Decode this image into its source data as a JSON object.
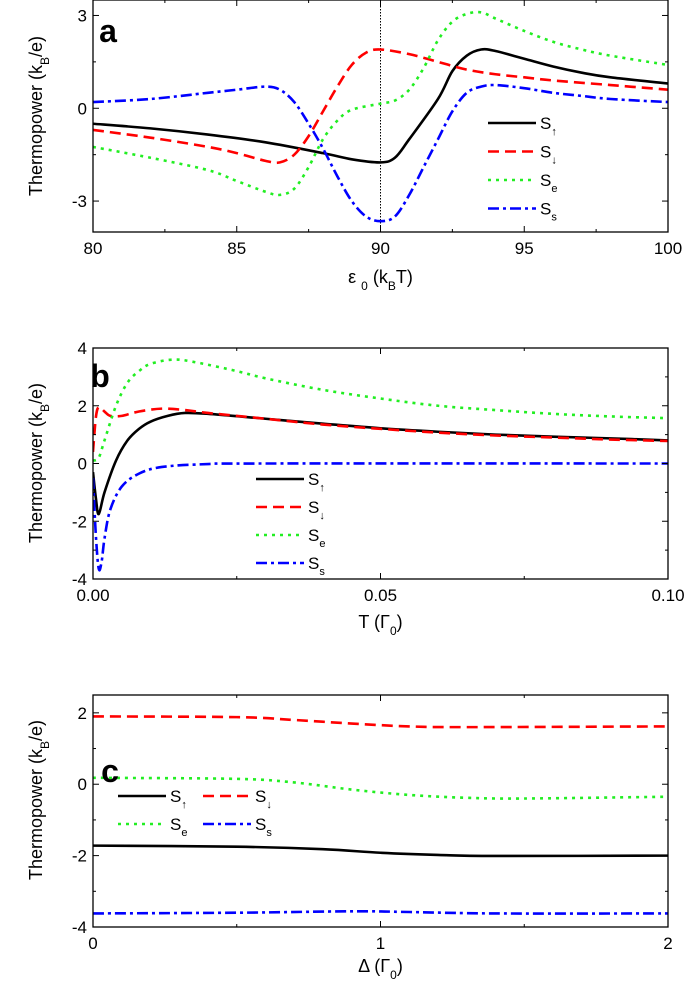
{
  "chart_data": [
    {
      "panel": "a",
      "type": "line",
      "xlabel_parts": [
        [
          "ε",
          0
        ],
        [
          " ",
          0
        ],
        [
          "0",
          1
        ],
        [
          " (k",
          0
        ],
        [
          "B",
          1
        ],
        [
          "T)",
          0
        ]
      ],
      "ylabel_parts": [
        [
          "Thermopower (k",
          0
        ],
        [
          "B",
          1
        ],
        [
          "/e)",
          0
        ]
      ],
      "xlim": [
        80,
        100
      ],
      "ylim": [
        -4,
        3.5
      ],
      "xticks": [
        80,
        85,
        90,
        95,
        100
      ],
      "xtick_labels": [
        "80",
        "85",
        "90",
        "95",
        "100"
      ],
      "yticks": [
        3,
        0,
        -3
      ],
      "ytick_labels": [
        "3",
        "0",
        "-3"
      ],
      "vline": 90,
      "legend": "right",
      "series": [
        {
          "name": "S",
          "sub": "↑",
          "color": "#000000",
          "style": "solid",
          "x": [
            80,
            82,
            84,
            86,
            88,
            89,
            90,
            90.5,
            91,
            92,
            92.5,
            93,
            93.5,
            94,
            95,
            96,
            97,
            98,
            100
          ],
          "y": [
            -0.5,
            -0.65,
            -0.85,
            -1.1,
            -1.45,
            -1.65,
            -1.75,
            -1.6,
            -1.0,
            0.3,
            1.2,
            1.7,
            1.9,
            1.85,
            1.6,
            1.35,
            1.15,
            1.0,
            0.8
          ]
        },
        {
          "name": "S",
          "sub": "↓",
          "color": "#ff0000",
          "style": "dash",
          "x": [
            80,
            82,
            84,
            85,
            86,
            86.5,
            87,
            87.5,
            88,
            88.5,
            89,
            89.5,
            90,
            91,
            92,
            93,
            94,
            95,
            96,
            98,
            100
          ],
          "y": [
            -0.7,
            -0.95,
            -1.25,
            -1.45,
            -1.7,
            -1.75,
            -1.5,
            -0.9,
            -0.1,
            0.7,
            1.4,
            1.8,
            1.9,
            1.75,
            1.5,
            1.25,
            1.1,
            1.0,
            0.9,
            0.75,
            0.6
          ]
        },
        {
          "name": "S",
          "sub": "e",
          "color": "#22ee22",
          "style": "dot",
          "x": [
            80,
            82,
            84,
            85,
            86,
            86.5,
            87,
            87.5,
            88,
            88.5,
            89,
            90,
            90.5,
            91,
            91.5,
            92,
            92.5,
            93,
            93.5,
            94,
            95,
            96,
            97,
            98,
            100
          ],
          "y": [
            -1.25,
            -1.6,
            -2.0,
            -2.35,
            -2.7,
            -2.8,
            -2.6,
            -1.9,
            -1.0,
            -0.4,
            -0.05,
            0.15,
            0.25,
            0.6,
            1.3,
            2.2,
            2.8,
            3.05,
            3.1,
            2.9,
            2.5,
            2.15,
            1.9,
            1.7,
            1.4
          ]
        },
        {
          "name": "S",
          "sub": "s",
          "color": "#0000ff",
          "style": "dashdot",
          "x": [
            80,
            82,
            84,
            85,
            86,
            86.5,
            87,
            87.5,
            88,
            88.5,
            89,
            89.5,
            90,
            90.5,
            91,
            91.5,
            92,
            92.5,
            93,
            93.5,
            94,
            95,
            96,
            97,
            98,
            100
          ],
          "y": [
            0.2,
            0.3,
            0.5,
            0.6,
            0.7,
            0.6,
            0.2,
            -0.5,
            -1.3,
            -2.2,
            -3.0,
            -3.5,
            -3.65,
            -3.5,
            -2.8,
            -1.9,
            -1.0,
            -0.1,
            0.5,
            0.7,
            0.75,
            0.65,
            0.5,
            0.4,
            0.3,
            0.2
          ]
        }
      ]
    },
    {
      "panel": "b",
      "type": "line",
      "xlabel_parts": [
        [
          "T (Γ",
          0
        ],
        [
          "0",
          1
        ],
        [
          ")",
          0
        ]
      ],
      "ylabel_parts": [
        [
          "Thermopower (k",
          0
        ],
        [
          "B",
          1
        ],
        [
          "/e)",
          0
        ]
      ],
      "xlim": [
        0,
        0.1
      ],
      "ylim": [
        -4,
        4
      ],
      "xticks": [
        0,
        0.05,
        0.1
      ],
      "xtick_labels": [
        "0.00",
        "0.05",
        "0.10"
      ],
      "yticks": [
        4,
        2,
        0,
        -2,
        -4
      ],
      "ytick_labels": [
        "4",
        "2",
        "0",
        "-2",
        "-4"
      ],
      "legend": "center",
      "series": [
        {
          "name": "S",
          "sub": "↑",
          "color": "#000000",
          "style": "solid",
          "x": [
            0,
            0.0005,
            0.001,
            0.002,
            0.004,
            0.006,
            0.008,
            0.01,
            0.013,
            0.016,
            0.02,
            0.03,
            0.04,
            0.05,
            0.06,
            0.07,
            0.08,
            0.09,
            0.1
          ],
          "y": [
            -0.3,
            -1.2,
            -1.75,
            -1.0,
            0.1,
            0.8,
            1.2,
            1.45,
            1.65,
            1.75,
            1.72,
            1.55,
            1.38,
            1.22,
            1.1,
            1.0,
            0.93,
            0.87,
            0.8
          ]
        },
        {
          "name": "S",
          "sub": "↓",
          "color": "#ff0000",
          "style": "dash",
          "x": [
            0,
            0.0005,
            0.001,
            0.002,
            0.003,
            0.005,
            0.008,
            0.012,
            0.016,
            0.02,
            0.03,
            0.04,
            0.05,
            0.06,
            0.07,
            0.08,
            0.09,
            0.1
          ],
          "y": [
            0.4,
            1.6,
            1.95,
            1.8,
            1.65,
            1.65,
            1.8,
            1.9,
            1.85,
            1.75,
            1.55,
            1.35,
            1.2,
            1.07,
            0.97,
            0.9,
            0.83,
            0.78
          ]
        },
        {
          "name": "S",
          "sub": "e",
          "color": "#22ee22",
          "style": "dot",
          "x": [
            0,
            0.001,
            0.002,
            0.004,
            0.006,
            0.008,
            0.01,
            0.014,
            0.018,
            0.025,
            0.03,
            0.04,
            0.05,
            0.06,
            0.07,
            0.08,
            0.09,
            0.1
          ],
          "y": [
            0.1,
            0.2,
            0.8,
            2.0,
            2.8,
            3.2,
            3.45,
            3.6,
            3.5,
            3.2,
            2.95,
            2.55,
            2.25,
            2.0,
            1.85,
            1.72,
            1.63,
            1.57
          ]
        },
        {
          "name": "S",
          "sub": "s",
          "color": "#0000ff",
          "style": "dashdot",
          "x": [
            0,
            0.0005,
            0.001,
            0.0015,
            0.002,
            0.003,
            0.005,
            0.008,
            0.012,
            0.02,
            0.03,
            0.1
          ],
          "y": [
            -0.5,
            -2.5,
            -3.65,
            -3.4,
            -2.6,
            -1.6,
            -0.8,
            -0.35,
            -0.12,
            -0.02,
            0,
            0
          ]
        }
      ]
    },
    {
      "panel": "c",
      "type": "line",
      "xlabel_parts": [
        [
          "Δ (Γ",
          0
        ],
        [
          "0",
          1
        ],
        [
          ")",
          0
        ]
      ],
      "ylabel_parts": [
        [
          "Thermopower (k",
          0
        ],
        [
          "B",
          1
        ],
        [
          "/e)",
          0
        ]
      ],
      "xlim": [
        0,
        2
      ],
      "ylim": [
        -4,
        2.5
      ],
      "xticks": [
        0,
        1,
        2
      ],
      "xtick_labels": [
        "0",
        "1",
        "2"
      ],
      "yticks": [
        2,
        0,
        -2,
        -4
      ],
      "ytick_labels": [
        "2",
        "0",
        "-2",
        "-4"
      ],
      "legend": "center-left",
      "series": [
        {
          "name": "S",
          "sub": "↑",
          "color": "#000000",
          "style": "solid",
          "x": [
            0,
            0.5,
            0.8,
            1.0,
            1.2,
            1.4,
            2
          ],
          "y": [
            -1.72,
            -1.75,
            -1.82,
            -1.92,
            -1.98,
            -2.01,
            -2.0
          ]
        },
        {
          "name": "S",
          "sub": "↓",
          "color": "#ff0000",
          "style": "dash",
          "x": [
            0,
            0.5,
            0.7,
            0.9,
            1.1,
            1.3,
            2
          ],
          "y": [
            1.9,
            1.88,
            1.8,
            1.7,
            1.62,
            1.6,
            1.62
          ]
        },
        {
          "name": "S",
          "sub": "e",
          "color": "#22ee22",
          "style": "dot",
          "x": [
            0,
            0.5,
            0.7,
            0.9,
            1.1,
            1.3,
            1.5,
            2
          ],
          "y": [
            0.18,
            0.15,
            0.05,
            -0.15,
            -0.3,
            -0.38,
            -0.4,
            -0.35
          ]
        },
        {
          "name": "S",
          "sub": "s",
          "color": "#0000ff",
          "style": "dashdot",
          "x": [
            0,
            0.5,
            0.9,
            1.1,
            1.4,
            2
          ],
          "y": [
            -3.62,
            -3.6,
            -3.56,
            -3.58,
            -3.62,
            -3.62
          ]
        }
      ]
    }
  ]
}
